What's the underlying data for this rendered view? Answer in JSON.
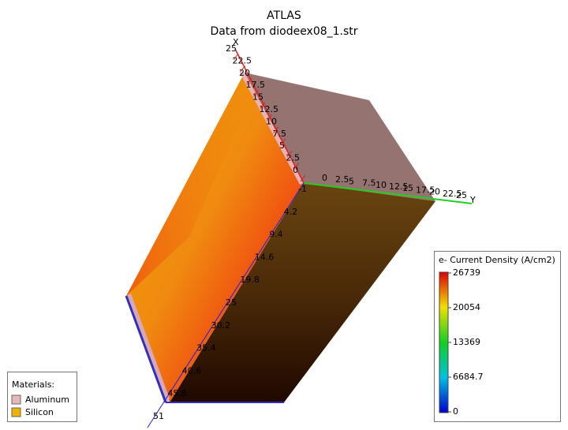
{
  "header": {
    "title": "ATLAS",
    "subtitle": "Data from diodeex08_1.str"
  },
  "axes": {
    "x": {
      "label": "X",
      "ticks": [
        "0",
        "2.5",
        "5",
        "7.5",
        "10",
        "12.5",
        "15",
        "17.5",
        "20",
        "22.5",
        "25"
      ]
    },
    "y": {
      "label": "Y",
      "ticks": [
        "0",
        "2.5",
        "5",
        "7.5",
        "10",
        "12.5",
        "15",
        "17.5",
        "20",
        "22.5",
        "25"
      ]
    },
    "z": {
      "ticks": [
        "-1",
        "4.2",
        "9.4",
        "14.6",
        "19.8",
        "25",
        "30.2",
        "35.4",
        "40.6",
        "45.8",
        "51"
      ]
    }
  },
  "materials": {
    "title": "Materials:",
    "items": [
      "Aluminum",
      "Silicon"
    ]
  },
  "colorbar": {
    "title": "e- Current Density (A/cm2)",
    "labels": [
      "26739",
      "20054",
      "13369",
      "6684.7",
      "0"
    ]
  }
}
